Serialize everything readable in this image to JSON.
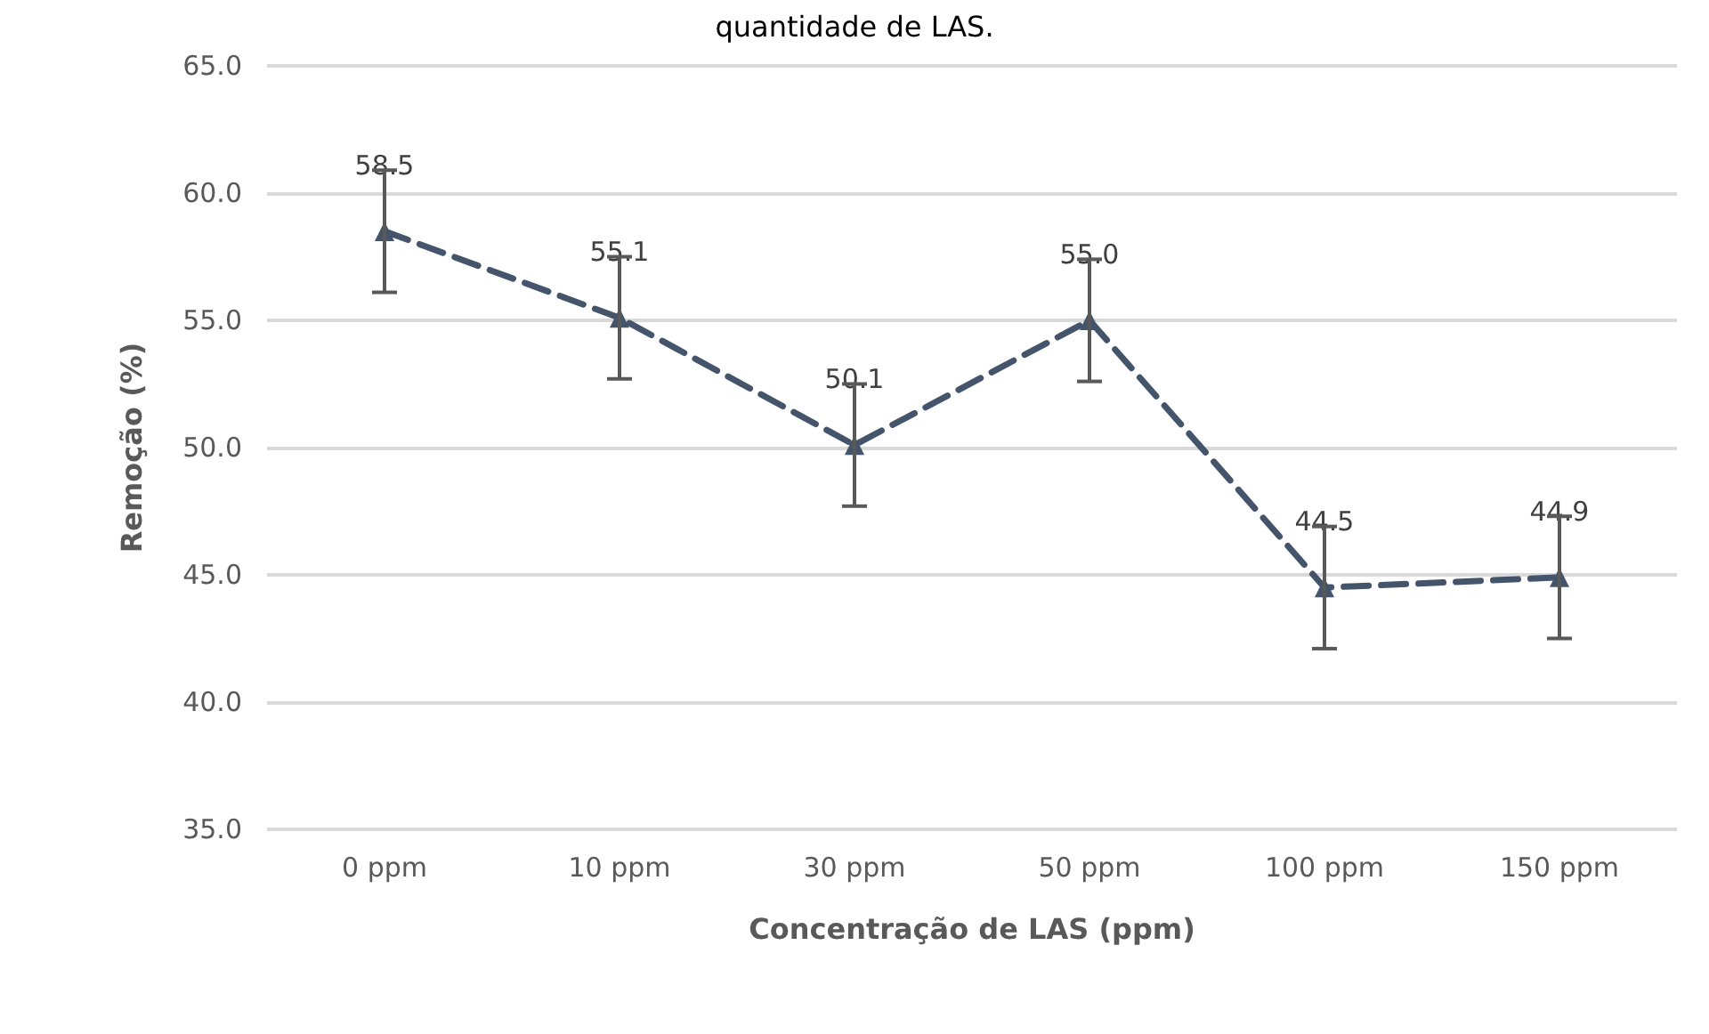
{
  "chart_data": {
    "type": "line",
    "title": "quantidade de LAS.",
    "xlabel": "Concentração de LAS (ppm)",
    "ylabel": "Remoção (%)",
    "categories": [
      "0 ppm",
      "10 ppm",
      "30 ppm",
      "50 ppm",
      "100 ppm",
      "150 ppm"
    ],
    "series": [
      {
        "color": "#44546a",
        "values": [
          58.5,
          55.1,
          50.1,
          55.0,
          44.5,
          44.9
        ],
        "value_labels": [
          "58.5",
          "55.1",
          "50.1",
          "55.0",
          "44.5",
          "44.9"
        ],
        "errors": [
          2.4,
          2.4,
          2.4,
          2.4,
          2.4,
          2.4
        ]
      }
    ],
    "ylim": [
      35,
      65
    ],
    "yticks": [
      {
        "value": 35,
        "label": "35.0"
      },
      {
        "value": 40,
        "label": "40.0"
      },
      {
        "value": 45,
        "label": "45.0"
      },
      {
        "value": 50,
        "label": "50.0"
      },
      {
        "value": 55,
        "label": "55.0"
      },
      {
        "value": 60,
        "label": "60.0"
      },
      {
        "value": 65,
        "label": "65.0"
      }
    ],
    "grid": "y",
    "marker": "triangle",
    "line_style": "dashed"
  }
}
